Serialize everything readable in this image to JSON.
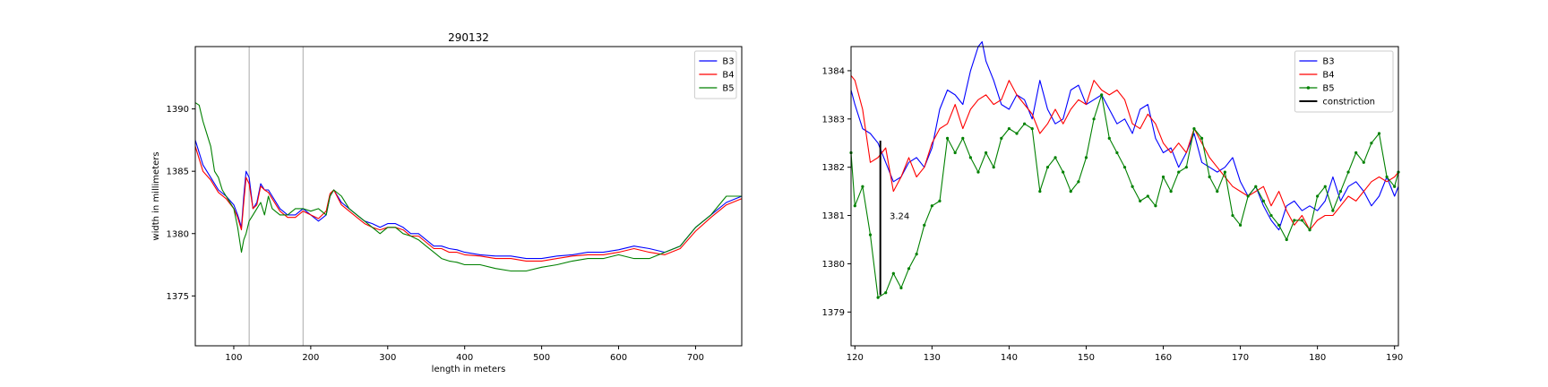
{
  "chart_data": [
    {
      "type": "line",
      "title": "290132",
      "xlabel": "length in meters",
      "ylabel": "width in millimeters",
      "xlim": [
        50,
        760
      ],
      "ylim": [
        1371,
        1395
      ],
      "xticks": [
        100,
        200,
        300,
        400,
        500,
        600,
        700
      ],
      "yticks": [
        1375,
        1380,
        1385,
        1390
      ],
      "vlines": [
        120,
        190
      ],
      "legend": "top-right",
      "grid": false,
      "series": [
        {
          "name": "B3",
          "color": "#0000ff",
          "x": [
            50,
            55,
            60,
            70,
            80,
            90,
            100,
            105,
            110,
            113,
            116,
            120,
            125,
            130,
            135,
            140,
            145,
            150,
            160,
            170,
            180,
            190,
            200,
            210,
            220,
            225,
            230,
            240,
            250,
            260,
            270,
            280,
            290,
            300,
            310,
            320,
            330,
            340,
            350,
            360,
            370,
            380,
            390,
            400,
            420,
            440,
            460,
            480,
            500,
            520,
            540,
            560,
            580,
            600,
            620,
            640,
            660,
            680,
            700,
            720,
            740,
            760
          ],
          "y": [
            1387.5,
            1386.5,
            1385.5,
            1384.5,
            1383.5,
            1383.0,
            1382.3,
            1381.5,
            1380.5,
            1383.0,
            1385.0,
            1384.5,
            1382.0,
            1382.5,
            1384.0,
            1383.5,
            1383.5,
            1383.0,
            1382.0,
            1381.5,
            1381.5,
            1382.0,
            1381.5,
            1381.0,
            1381.5,
            1383.0,
            1383.5,
            1382.5,
            1382.0,
            1381.5,
            1381.0,
            1380.8,
            1380.5,
            1380.8,
            1380.8,
            1380.5,
            1380.0,
            1380.0,
            1379.5,
            1379.0,
            1379.0,
            1378.8,
            1378.7,
            1378.5,
            1378.3,
            1378.2,
            1378.2,
            1378.0,
            1378.0,
            1378.2,
            1378.3,
            1378.5,
            1378.5,
            1378.7,
            1379.0,
            1378.8,
            1378.5,
            1379.0,
            1380.5,
            1381.5,
            1382.5,
            1383.0
          ]
        },
        {
          "name": "B4",
          "color": "#ff0000",
          "x": [
            50,
            55,
            60,
            70,
            80,
            90,
            100,
            105,
            110,
            113,
            116,
            120,
            125,
            130,
            135,
            140,
            145,
            150,
            160,
            170,
            180,
            190,
            200,
            210,
            220,
            225,
            230,
            240,
            250,
            260,
            270,
            280,
            290,
            300,
            310,
            320,
            330,
            340,
            350,
            360,
            370,
            380,
            390,
            400,
            420,
            440,
            460,
            480,
            500,
            520,
            540,
            560,
            580,
            600,
            620,
            640,
            660,
            680,
            700,
            720,
            740,
            760
          ],
          "y": [
            1387.0,
            1386.0,
            1385.0,
            1384.3,
            1383.3,
            1382.8,
            1382.0,
            1381.3,
            1380.3,
            1382.5,
            1384.5,
            1384.0,
            1382.0,
            1382.3,
            1383.8,
            1383.5,
            1383.3,
            1382.8,
            1381.8,
            1381.3,
            1381.3,
            1381.8,
            1381.5,
            1381.2,
            1381.8,
            1383.2,
            1383.5,
            1382.3,
            1381.8,
            1381.3,
            1380.8,
            1380.5,
            1380.3,
            1380.5,
            1380.5,
            1380.3,
            1379.8,
            1379.8,
            1379.3,
            1378.8,
            1378.8,
            1378.5,
            1378.5,
            1378.3,
            1378.2,
            1378.0,
            1378.0,
            1377.8,
            1377.8,
            1378.0,
            1378.2,
            1378.3,
            1378.3,
            1378.5,
            1378.8,
            1378.5,
            1378.3,
            1378.8,
            1380.2,
            1381.3,
            1382.3,
            1382.8
          ]
        },
        {
          "name": "B5",
          "color": "#008000",
          "x": [
            50,
            55,
            60,
            65,
            70,
            75,
            80,
            85,
            90,
            100,
            105,
            110,
            113,
            116,
            120,
            125,
            130,
            135,
            140,
            145,
            150,
            160,
            170,
            180,
            190,
            200,
            210,
            220,
            225,
            230,
            240,
            250,
            260,
            270,
            280,
            290,
            300,
            310,
            320,
            330,
            340,
            350,
            360,
            370,
            380,
            390,
            400,
            420,
            440,
            460,
            480,
            500,
            520,
            540,
            560,
            580,
            600,
            620,
            640,
            660,
            680,
            700,
            720,
            740,
            760
          ],
          "y": [
            1390.5,
            1390.3,
            1389.0,
            1388.0,
            1387.0,
            1385.0,
            1384.5,
            1383.5,
            1383.0,
            1382.0,
            1380.5,
            1378.5,
            1379.5,
            1380.0,
            1381.0,
            1381.5,
            1382.0,
            1382.5,
            1381.5,
            1383.0,
            1382.0,
            1381.5,
            1381.5,
            1382.0,
            1382.0,
            1381.8,
            1382.0,
            1381.5,
            1383.0,
            1383.5,
            1383.0,
            1382.0,
            1381.5,
            1381.0,
            1380.5,
            1380.0,
            1380.5,
            1380.5,
            1380.0,
            1379.8,
            1379.5,
            1379.0,
            1378.5,
            1378.0,
            1377.8,
            1377.7,
            1377.5,
            1377.5,
            1377.2,
            1377.0,
            1377.0,
            1377.3,
            1377.5,
            1377.8,
            1378.0,
            1378.0,
            1378.3,
            1378.0,
            1378.0,
            1378.5,
            1379.0,
            1380.5,
            1381.5,
            1383.0,
            1383.0
          ]
        }
      ]
    },
    {
      "type": "line",
      "title": "",
      "xlabel": "",
      "ylabel": "",
      "xlim": [
        119.5,
        190.5
      ],
      "ylim": [
        1378.3,
        1384.5
      ],
      "xticks": [
        120,
        130,
        140,
        150,
        160,
        170,
        180,
        190
      ],
      "yticks": [
        1379,
        1380,
        1381,
        1382,
        1383,
        1384
      ],
      "legend": "top-right",
      "grid": false,
      "annotation": {
        "text": "3.24",
        "x": 124.5,
        "y": 1381.0
      },
      "constriction": {
        "x": 123.3,
        "y0": 1379.35,
        "y1": 1382.55
      },
      "series": [
        {
          "name": "B3",
          "color": "#0000ff",
          "x": [
            119.5,
            120,
            121,
            122,
            123,
            124,
            125,
            126,
            127,
            128,
            129,
            130,
            131,
            132,
            133,
            134,
            135,
            136,
            136.5,
            137,
            138,
            139,
            140,
            141,
            142,
            143,
            144,
            145,
            146,
            147,
            148,
            149,
            150,
            151,
            152,
            153,
            154,
            155,
            156,
            157,
            158,
            159,
            160,
            161,
            162,
            163,
            164,
            165,
            166,
            167,
            168,
            169,
            170,
            171,
            172,
            173,
            174,
            175,
            176,
            177,
            178,
            179,
            180,
            181,
            182,
            183,
            184,
            185,
            186,
            187,
            188,
            189,
            190,
            190.5
          ],
          "y": [
            1383.6,
            1383.3,
            1382.8,
            1382.7,
            1382.5,
            1382.1,
            1381.7,
            1381.8,
            1382.1,
            1382.2,
            1382.0,
            1382.4,
            1383.2,
            1383.6,
            1383.5,
            1383.3,
            1384.0,
            1384.5,
            1384.6,
            1384.2,
            1383.8,
            1383.3,
            1383.2,
            1383.5,
            1383.4,
            1383.0,
            1383.8,
            1383.2,
            1382.9,
            1383.0,
            1383.6,
            1383.7,
            1383.3,
            1383.4,
            1383.5,
            1383.2,
            1382.9,
            1383.0,
            1382.7,
            1383.2,
            1383.3,
            1382.6,
            1382.3,
            1382.4,
            1382.0,
            1382.3,
            1382.7,
            1382.1,
            1382.0,
            1381.9,
            1382.0,
            1382.2,
            1381.7,
            1381.4,
            1381.6,
            1381.2,
            1380.9,
            1380.7,
            1381.2,
            1381.3,
            1381.1,
            1381.2,
            1381.1,
            1381.3,
            1381.8,
            1381.3,
            1381.6,
            1381.7,
            1381.5,
            1381.2,
            1381.4,
            1381.8,
            1381.4,
            1381.6
          ]
        },
        {
          "name": "B4",
          "color": "#ff0000",
          "x": [
            119.5,
            120,
            121,
            122,
            123,
            124,
            125,
            126,
            127,
            128,
            129,
            130,
            131,
            132,
            133,
            134,
            135,
            136,
            137,
            138,
            139,
            140,
            141,
            142,
            143,
            144,
            145,
            146,
            147,
            148,
            149,
            150,
            151,
            152,
            153,
            154,
            155,
            156,
            157,
            158,
            159,
            160,
            161,
            162,
            163,
            164,
            165,
            166,
            167,
            168,
            169,
            170,
            171,
            172,
            173,
            174,
            175,
            176,
            177,
            178,
            179,
            180,
            181,
            182,
            183,
            184,
            185,
            186,
            187,
            188,
            189,
            190,
            190.5
          ],
          "y": [
            1383.9,
            1383.8,
            1383.2,
            1382.1,
            1382.2,
            1382.4,
            1381.5,
            1381.8,
            1382.2,
            1381.8,
            1382.0,
            1382.5,
            1382.8,
            1382.9,
            1383.3,
            1382.8,
            1383.2,
            1383.4,
            1383.5,
            1383.3,
            1383.4,
            1383.8,
            1383.5,
            1383.3,
            1383.1,
            1382.7,
            1382.9,
            1383.2,
            1382.9,
            1383.2,
            1383.4,
            1383.3,
            1383.8,
            1383.6,
            1383.5,
            1383.6,
            1383.4,
            1382.9,
            1382.8,
            1383.1,
            1382.9,
            1382.5,
            1382.3,
            1382.5,
            1382.3,
            1382.8,
            1382.5,
            1382.2,
            1382.0,
            1381.8,
            1381.6,
            1381.5,
            1381.4,
            1381.5,
            1381.6,
            1381.2,
            1381.5,
            1381.1,
            1380.8,
            1381.0,
            1380.7,
            1380.9,
            1381.0,
            1381.0,
            1381.2,
            1381.4,
            1381.3,
            1381.5,
            1381.7,
            1381.8,
            1381.7,
            1381.8,
            1381.9
          ]
        },
        {
          "name": "B5",
          "color": "#008000",
          "markers": true,
          "x": [
            119.5,
            120,
            121,
            122,
            123,
            124,
            125,
            126,
            127,
            128,
            129,
            130,
            131,
            132,
            133,
            134,
            135,
            136,
            137,
            138,
            139,
            140,
            141,
            142,
            143,
            144,
            145,
            146,
            147,
            148,
            149,
            150,
            151,
            152,
            153,
            154,
            155,
            156,
            157,
            158,
            159,
            160,
            161,
            162,
            163,
            164,
            165,
            166,
            167,
            168,
            169,
            170,
            171,
            172,
            173,
            174,
            175,
            176,
            177,
            178,
            179,
            180,
            181,
            182,
            183,
            184,
            185,
            186,
            187,
            188,
            189,
            190,
            190.5
          ],
          "y": [
            1382.3,
            1381.2,
            1381.6,
            1380.6,
            1379.3,
            1379.4,
            1379.8,
            1379.5,
            1379.9,
            1380.2,
            1380.8,
            1381.2,
            1381.3,
            1382.6,
            1382.3,
            1382.6,
            1382.2,
            1381.9,
            1382.3,
            1382.0,
            1382.6,
            1382.8,
            1382.7,
            1382.9,
            1382.8,
            1381.5,
            1382.0,
            1382.2,
            1381.9,
            1381.5,
            1381.7,
            1382.2,
            1383.0,
            1383.5,
            1382.6,
            1382.3,
            1382.0,
            1381.6,
            1381.3,
            1381.4,
            1381.2,
            1381.8,
            1381.5,
            1381.9,
            1382.0,
            1382.8,
            1382.6,
            1381.8,
            1381.5,
            1381.9,
            1381.0,
            1380.8,
            1381.4,
            1381.6,
            1381.3,
            1381.0,
            1380.8,
            1380.5,
            1380.9,
            1380.9,
            1380.7,
            1381.4,
            1381.6,
            1381.1,
            1381.5,
            1381.9,
            1382.3,
            1382.1,
            1382.5,
            1382.7,
            1381.8,
            1381.6,
            1381.9
          ]
        }
      ]
    }
  ]
}
